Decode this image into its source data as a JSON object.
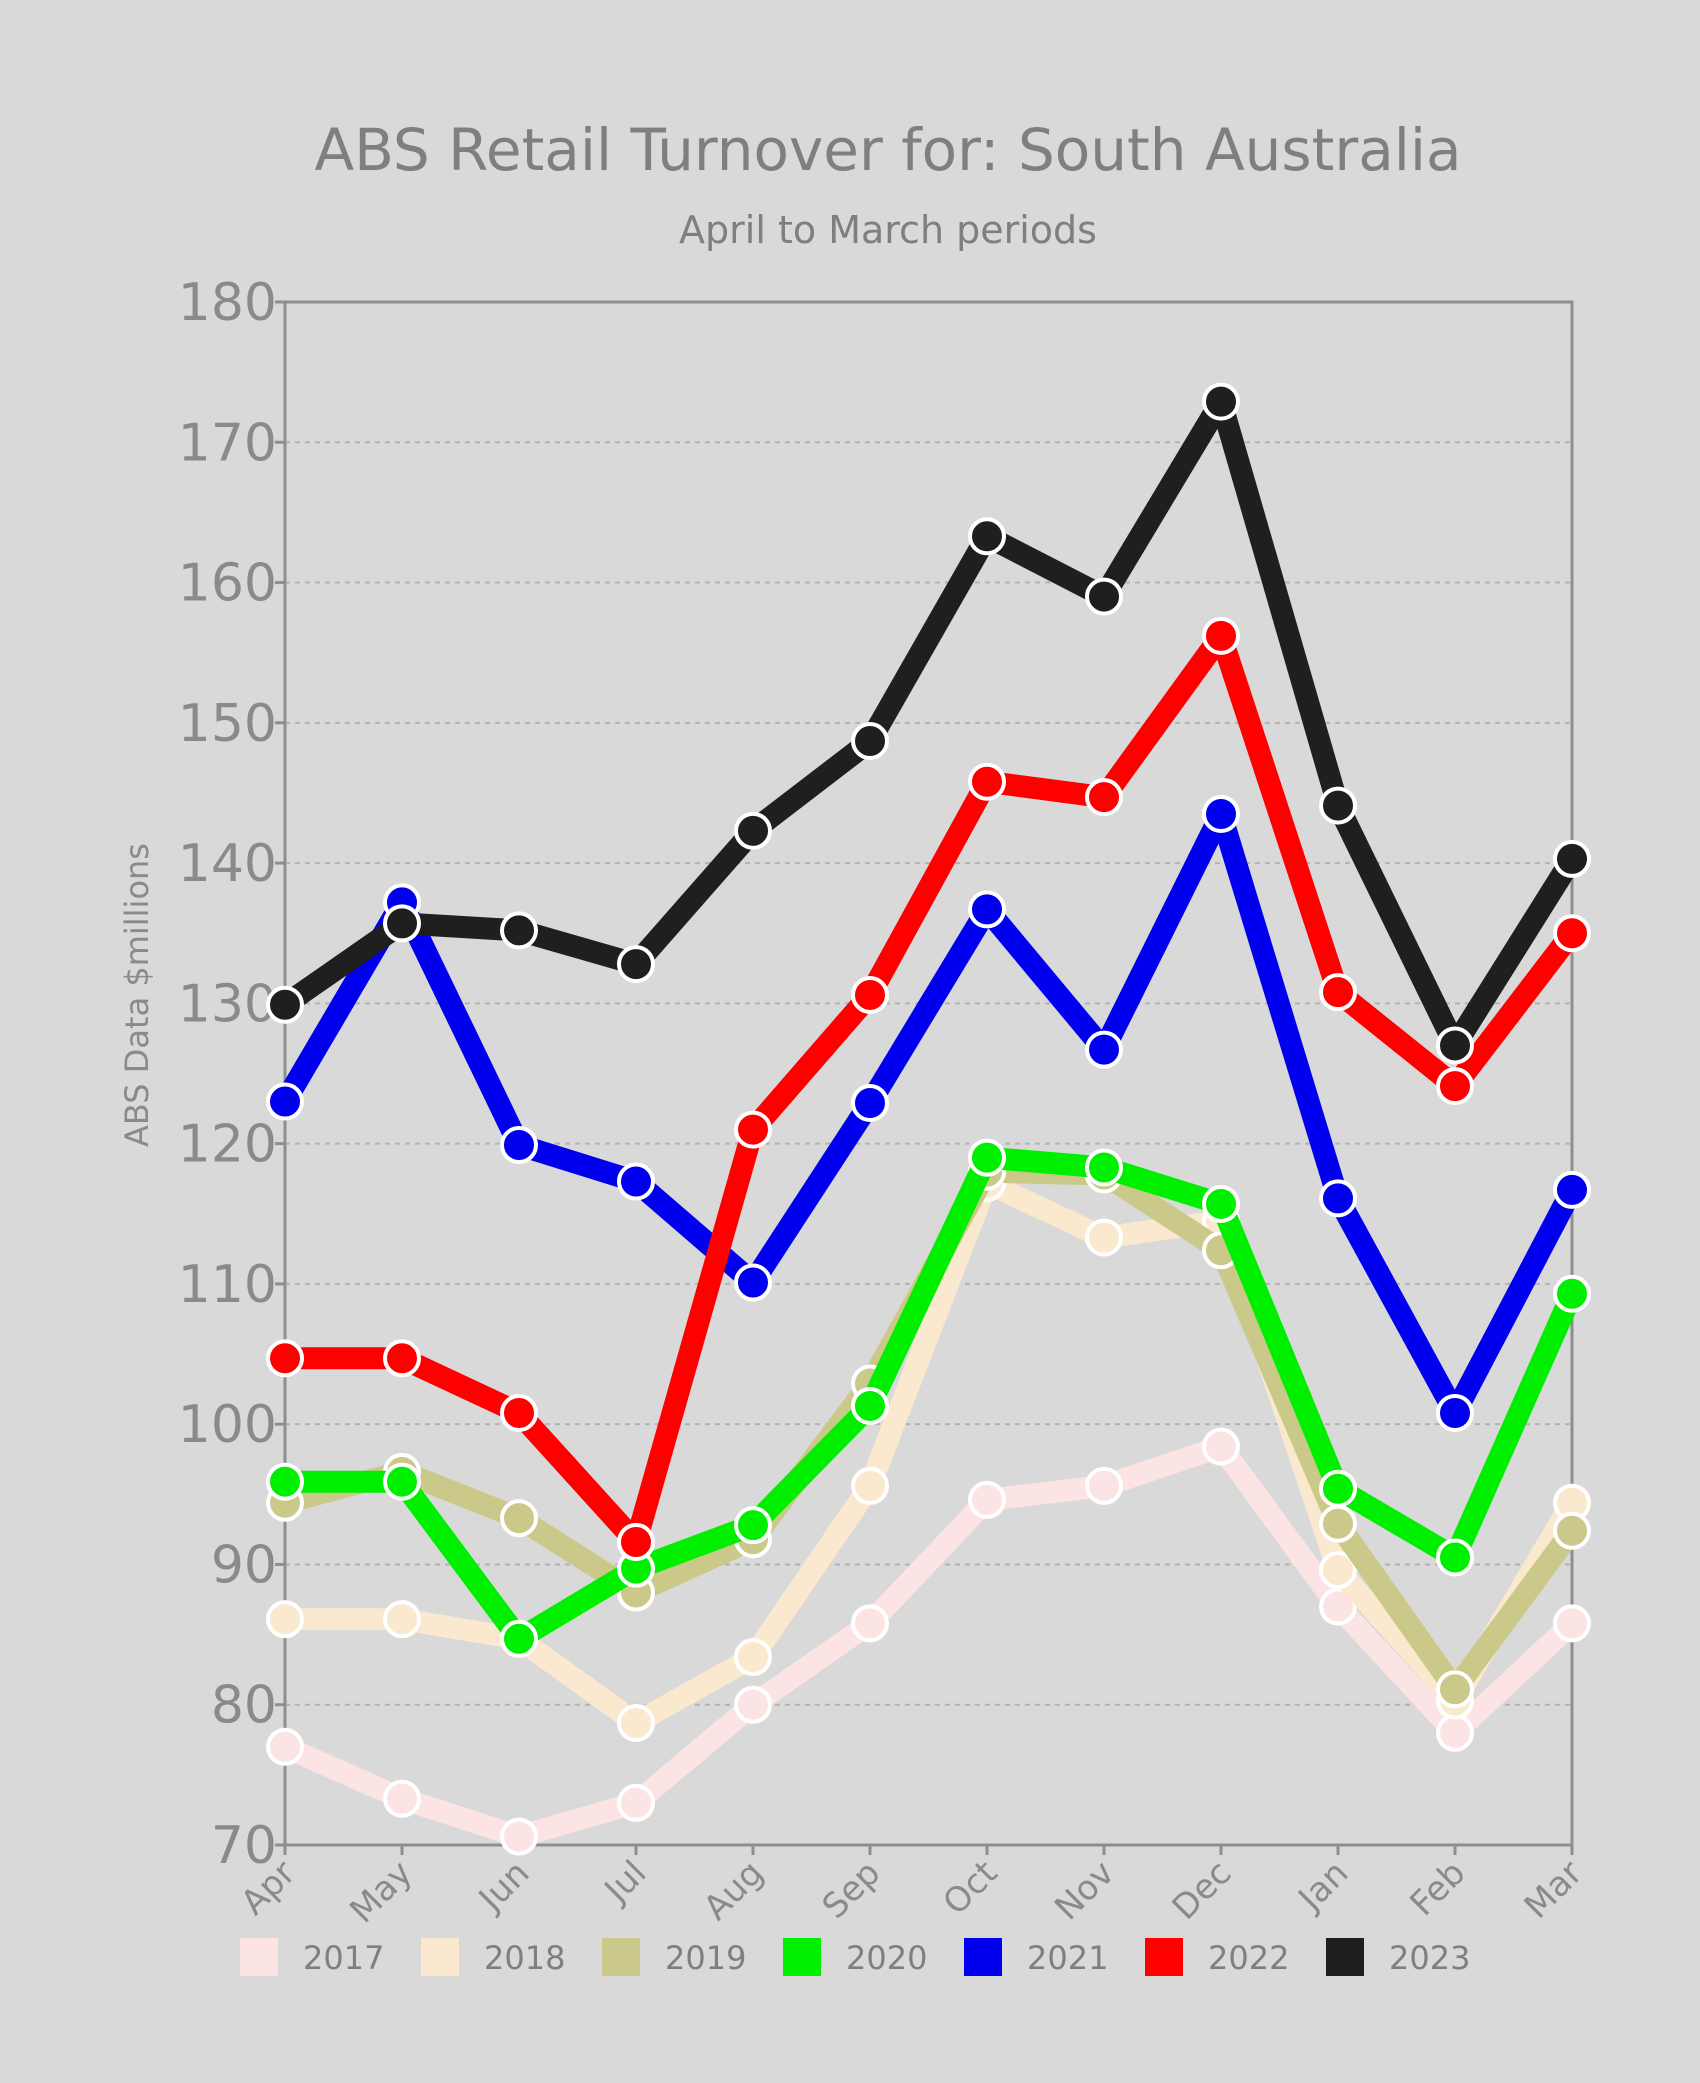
{
  "chart_data": {
    "type": "line",
    "title": "ABS Retail Turnover for: South Australia",
    "subtitle": "April to March periods",
    "ylabel": "ABS Data $millions",
    "xlabel": "",
    "ylim": [
      70,
      180
    ],
    "yticks": [
      70,
      80,
      90,
      100,
      110,
      120,
      130,
      140,
      150,
      160,
      170,
      180
    ],
    "categories": [
      "Apr",
      "May",
      "Jun",
      "Jul",
      "Aug",
      "Sep",
      "Oct",
      "Nov",
      "Dec",
      "Jan",
      "Feb",
      "Mar"
    ],
    "grid": true,
    "legend_position": "bottom",
    "series": [
      {
        "name": "2017",
        "color": "#fce4e4",
        "values": [
          77.0,
          73.3,
          70.6,
          73.0,
          80.0,
          85.8,
          94.6,
          95.6,
          98.4,
          87.0,
          78.0,
          85.8
        ]
      },
      {
        "name": "2018",
        "color": "#fbe9cf",
        "values": [
          86.1,
          86.1,
          84.7,
          78.7,
          83.4,
          95.6,
          117.2,
          113.3,
          114.5,
          89.6,
          80.3,
          94.4
        ]
      },
      {
        "name": "2019",
        "color": "#cbc98a",
        "values": [
          94.4,
          96.6,
          93.3,
          88.0,
          91.8,
          102.9,
          118.0,
          117.8,
          112.4,
          92.9,
          81.1,
          92.4
        ]
      },
      {
        "name": "2020",
        "color": "#00ee00",
        "values": [
          95.9,
          95.9,
          84.7,
          89.7,
          92.8,
          101.3,
          119.0,
          118.3,
          115.7,
          95.4,
          90.5,
          109.3
        ]
      },
      {
        "name": "2021",
        "color": "#0000ee",
        "values": [
          123.0,
          137.2,
          119.9,
          117.3,
          110.1,
          122.9,
          136.7,
          126.7,
          143.5,
          116.1,
          100.8,
          116.7
        ]
      },
      {
        "name": "2022",
        "color": "#ff0000",
        "values": [
          104.7,
          104.7,
          100.8,
          91.6,
          121.0,
          130.6,
          145.8,
          144.7,
          156.2,
          130.8,
          124.1,
          135.0
        ]
      },
      {
        "name": "2023",
        "color": "#1f1f1f",
        "values": [
          129.9,
          135.7,
          135.2,
          132.8,
          142.3,
          148.7,
          163.3,
          159.0,
          172.9,
          144.1,
          127.0,
          140.3
        ]
      }
    ]
  }
}
